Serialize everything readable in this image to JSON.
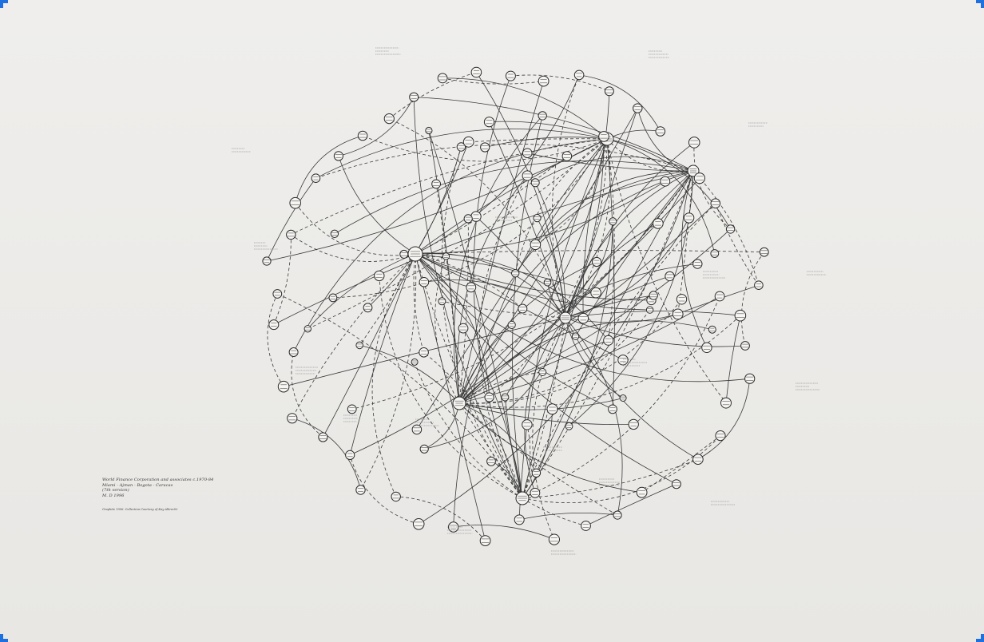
{
  "caption": {
    "lines": [
      "World Finance Corporation and associates c.1970-84",
      "Miami - Ajman - Bogota - Caracas",
      "(7th version)",
      "M. D 1996"
    ],
    "credit": "Graphite 1996. Collection Courtesy of Kay Albrecht"
  },
  "colors": {
    "ink": "#2a2a2a",
    "paper": "#ecebe9"
  },
  "hubs": [
    {
      "id": "wfc",
      "label": "World Finance Corporation"
    },
    {
      "id": "bank",
      "label": "Bank"
    },
    {
      "id": "east",
      "label": ""
    }
  ],
  "notes": [
    "1967 convicted of fraud",
    "1981 indicted for tax evasion",
    "1979 resigned as director",
    "1982 pleaded guilty to conspiracy",
    "1977 indicted by grand jury",
    "1983 convicted of theft",
    "1980 charged with fraud",
    "1984 sentenced to prison"
  ]
}
